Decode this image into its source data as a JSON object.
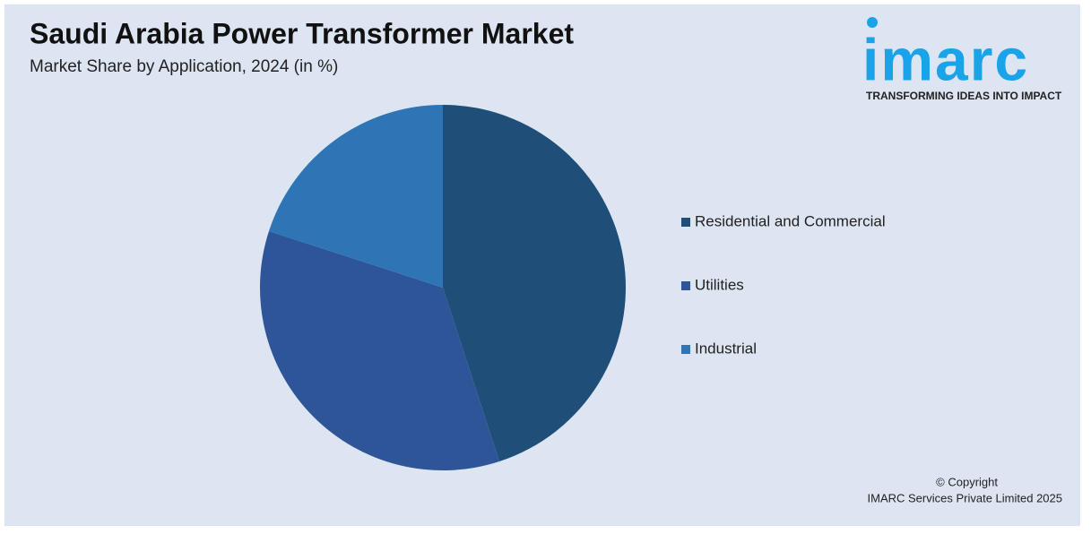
{
  "chart_data": {
    "type": "pie",
    "title": "Saudi Arabia Power Transformer Market",
    "subtitle": "Market Share by Application, 2024 (in %)",
    "categories": [
      "Residential and Commercial",
      "Utilities",
      "Industrial"
    ],
    "values": [
      45,
      35,
      20
    ],
    "colors": [
      "#1f4e79",
      "#2e5597",
      "#2e75b6"
    ],
    "legend": "right"
  },
  "logo": {
    "name": "imarc",
    "tagline": "TRANSFORMING IDEAS INTO IMPACT"
  },
  "footer": {
    "copyright": "© Copyright",
    "company": "IMARC Services Private Limited 2025"
  }
}
